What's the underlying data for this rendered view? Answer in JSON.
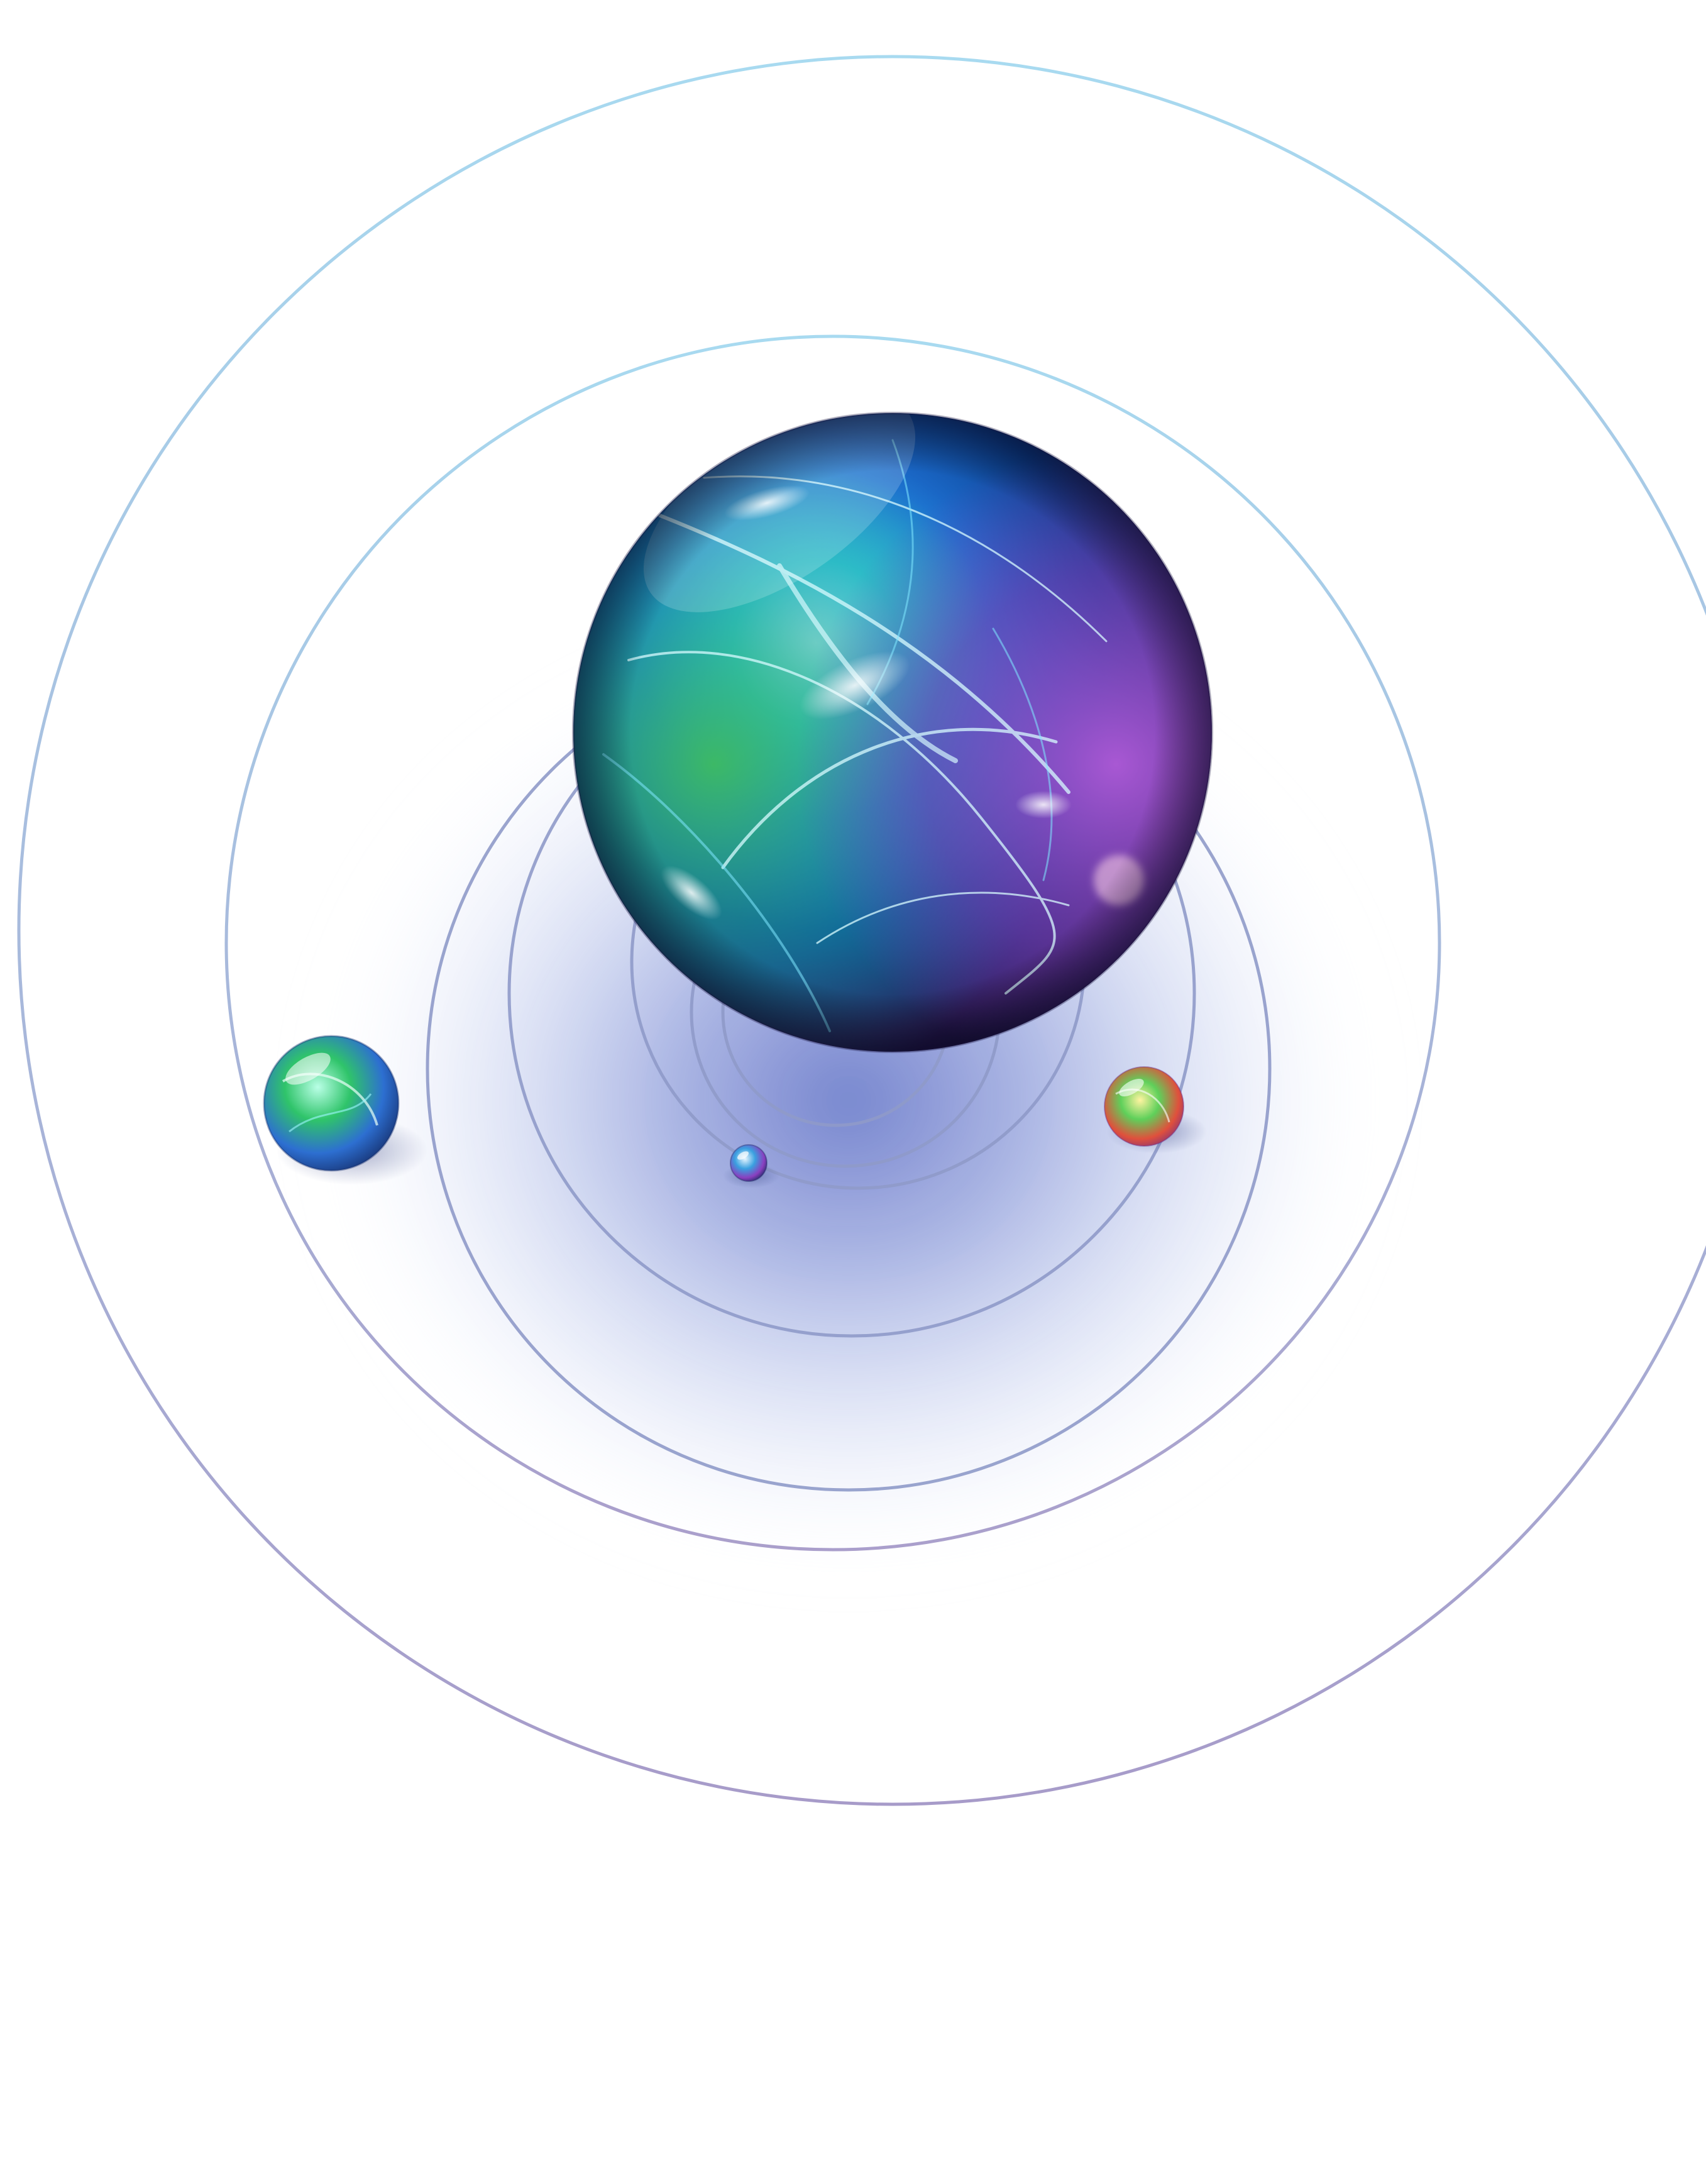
{
  "scene": {
    "background": "#ffffff",
    "ring_color_top": "#a8daf0",
    "ring_color_bottom": "#a79bc9",
    "inner_ring_color": "#8f9ac9",
    "glow_color": "#5a6cc4",
    "large_orb": {
      "colors": [
        "#c9f3ff",
        "#37c7d8",
        "#1aa7a8",
        "#3fbf5a",
        "#1d6fd0",
        "#0b3c8c",
        "#7a3fb8",
        "#2a1a55"
      ]
    },
    "small_orbs": [
      {
        "name": "left-orb",
        "colors": [
          "#b9ffe6",
          "#2fc46a",
          "#2d6fd1",
          "#16306e"
        ]
      },
      {
        "name": "right-orb",
        "colors": [
          "#fff4a0",
          "#5fd05a",
          "#e0503c",
          "#6a2a8a"
        ]
      },
      {
        "name": "tiny-orb",
        "colors": [
          "#e8f6ff",
          "#3aa0e0",
          "#8a3fbf",
          "#1d2a66"
        ]
      }
    ]
  }
}
